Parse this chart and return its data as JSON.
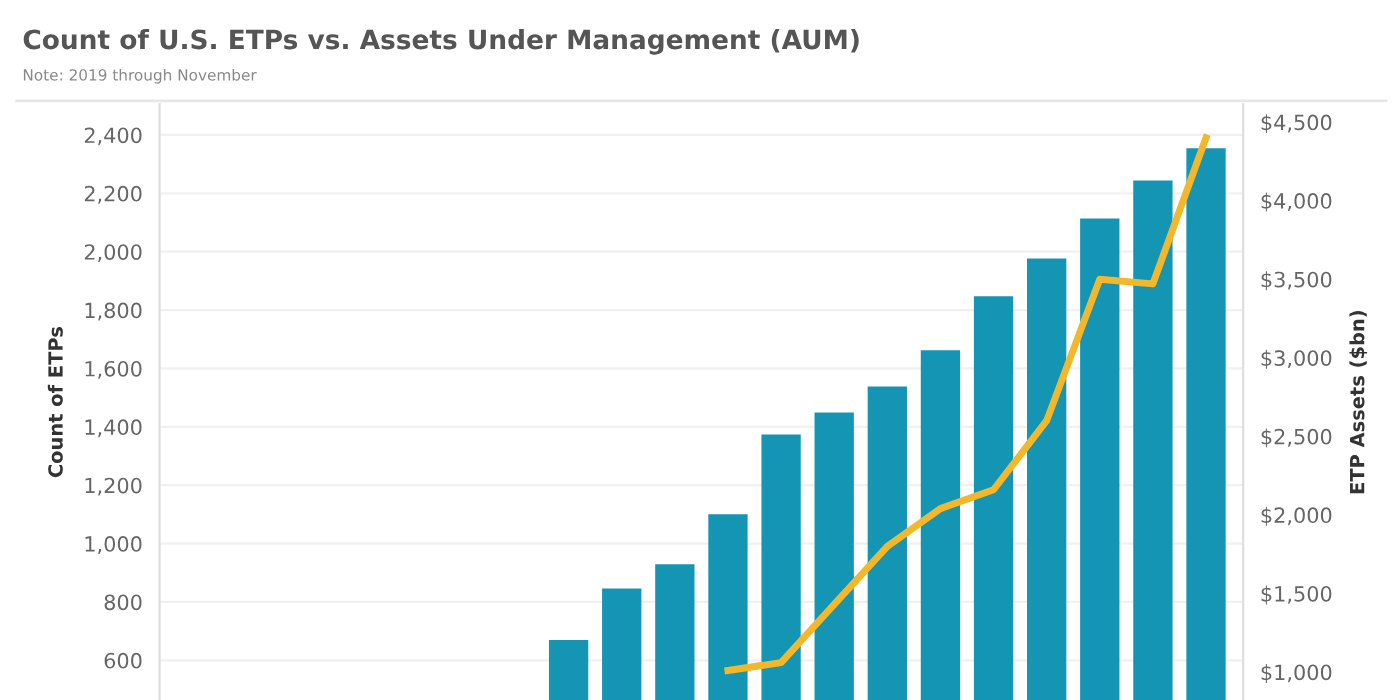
{
  "chart_data": {
    "type": "bar",
    "title": "Count of U.S. ETPs vs. Assets Under Management (AUM)",
    "annotations": [
      "Note: 2019 through November"
    ],
    "ylabel": "Count of ETPs",
    "y2label": "ETP Assets ($bn)",
    "categories": [
      null,
      null,
      null,
      null,
      null,
      null,
      null,
      null,
      null,
      null,
      null,
      null,
      null,
      null,
      null,
      null,
      null,
      null,
      null,
      null
    ],
    "series": [
      {
        "color": "#1495b4",
        "values": [
          null,
          null,
          null,
          null,
          null,
          null,
          null,
          670,
          846,
          929,
          1100,
          1374,
          1449,
          1538,
          1662,
          1847,
          1977,
          2114,
          2244,
          2354
        ]
      },
      {
        "type": "line",
        "axis": "y2",
        "color": "#f3b72c",
        "values": [
          null,
          null,
          null,
          null,
          null,
          null,
          null,
          null,
          null,
          null,
          1010,
          1060,
          1430,
          1800,
          2040,
          2160,
          2600,
          3500,
          3470,
          4400
        ]
      }
    ],
    "ylim": [
      464,
      2505
    ],
    "yticks": [
      {
        "value": 600,
        "label": "600"
      },
      {
        "value": 800,
        "label": "800"
      },
      {
        "value": 1000,
        "label": "1,000"
      },
      {
        "value": 1200,
        "label": "1,200"
      },
      {
        "value": 1400,
        "label": "1,400"
      },
      {
        "value": 1600,
        "label": "1,600"
      },
      {
        "value": 1800,
        "label": "1,800"
      },
      {
        "value": 2000,
        "label": "2,000"
      },
      {
        "value": 2200,
        "label": "2,200"
      },
      {
        "value": 2400,
        "label": "2,400"
      }
    ],
    "y2lim": [
      822,
      4613
    ],
    "y2ticks": [
      {
        "value": 1000,
        "label": "$1,000"
      },
      {
        "value": 1500,
        "label": "$1,500"
      },
      {
        "value": 2000,
        "label": "$2,000"
      },
      {
        "value": 2500,
        "label": "$2,500"
      },
      {
        "value": 3000,
        "label": "$3,000"
      },
      {
        "value": 3500,
        "label": "$3,500"
      },
      {
        "value": 4000,
        "label": "$4,000"
      },
      {
        "value": 4500,
        "label": "$4,500"
      }
    ],
    "grid": "y",
    "marker": "none",
    "line_style": "solid"
  }
}
